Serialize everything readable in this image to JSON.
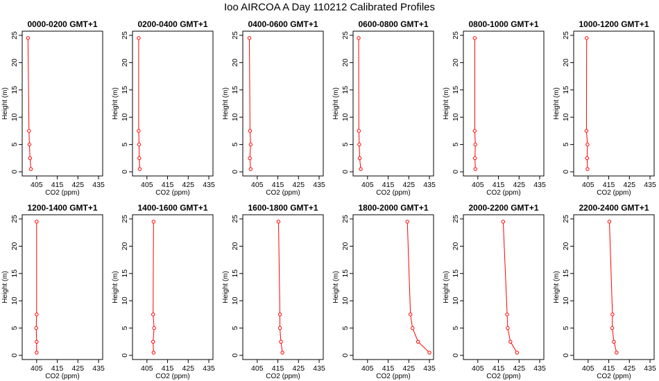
{
  "figure": {
    "title": "Ioo AIRCOA A  Day 110212  Calibrated Profiles",
    "line_color": "#ff0000",
    "axis_color": "#000000",
    "background": "#ffffff"
  },
  "chart_data": [
    {
      "type": "line",
      "title": "0000-0200 GMT+1",
      "xlabel": "CO2 (ppm)",
      "ylabel": "Height (m)",
      "xlim": [
        398,
        437
      ],
      "ylim": [
        0,
        25
      ],
      "x_ticks": [
        "405",
        "415",
        "425",
        "435"
      ],
      "y_ticks": [
        "0",
        "5",
        "10",
        "15",
        "20",
        "25"
      ],
      "grid": false,
      "markers": "open-circle",
      "series": [
        {
          "x": [
            402.2,
            401.8,
            401.5,
            401.3,
            400.8
          ],
          "y": [
            0.5,
            2.5,
            5,
            7.5,
            24.5
          ]
        }
      ]
    },
    {
      "type": "line",
      "title": "0200-0400 GMT+1",
      "xlabel": "CO2 (ppm)",
      "ylabel": "Height (m)",
      "xlim": [
        398,
        437
      ],
      "ylim": [
        0,
        25
      ],
      "x_ticks": [
        "405",
        "415",
        "425",
        "435"
      ],
      "y_ticks": [
        "0",
        "5",
        "10",
        "15",
        "20",
        "25"
      ],
      "grid": false,
      "markers": "open-circle",
      "series": [
        {
          "x": [
            401.5,
            401.3,
            401.2,
            401.0,
            401.0
          ],
          "y": [
            0.5,
            2.5,
            5,
            7.5,
            24.5
          ]
        }
      ]
    },
    {
      "type": "line",
      "title": "0400-0600 GMT+1",
      "xlabel": "CO2 (ppm)",
      "ylabel": "Height (m)",
      "xlim": [
        398,
        437
      ],
      "ylim": [
        0,
        25
      ],
      "x_ticks": [
        "405",
        "415",
        "425",
        "435"
      ],
      "y_ticks": [
        "0",
        "5",
        "10",
        "15",
        "20",
        "25"
      ],
      "grid": false,
      "markers": "open-circle",
      "series": [
        {
          "x": [
            401.8,
            401.4,
            401.8,
            401.5,
            401.2
          ],
          "y": [
            0.5,
            2.5,
            5,
            7.5,
            24.5
          ]
        }
      ]
    },
    {
      "type": "line",
      "title": "0600-0800 GMT+1",
      "xlabel": "CO2 (ppm)",
      "ylabel": "Height (m)",
      "xlim": [
        398,
        437
      ],
      "ylim": [
        0,
        25
      ],
      "x_ticks": [
        "405",
        "415",
        "425",
        "435"
      ],
      "y_ticks": [
        "0",
        "5",
        "10",
        "15",
        "20",
        "25"
      ],
      "grid": false,
      "markers": "open-circle",
      "series": [
        {
          "x": [
            401.7,
            401.2,
            401.0,
            400.8,
            400.7
          ],
          "y": [
            0.5,
            2.5,
            5,
            7.5,
            24.5
          ]
        }
      ]
    },
    {
      "type": "line",
      "title": "0800-1000 GMT+1",
      "xlabel": "CO2 (ppm)",
      "ylabel": "Height (m)",
      "xlim": [
        398,
        437
      ],
      "ylim": [
        0,
        25
      ],
      "x_ticks": [
        "405",
        "415",
        "425",
        "435"
      ],
      "y_ticks": [
        "0",
        "5",
        "10",
        "15",
        "20",
        "25"
      ],
      "grid": false,
      "markers": "open-circle",
      "series": [
        {
          "x": [
            403.8,
            403.6,
            403.8,
            403.5,
            403.5
          ],
          "y": [
            0.5,
            2.5,
            5,
            7.5,
            24.5
          ]
        }
      ]
    },
    {
      "type": "line",
      "title": "1000-1200 GMT+1",
      "xlabel": "CO2 (ppm)",
      "ylabel": "Height (m)",
      "xlim": [
        398,
        437
      ],
      "ylim": [
        0,
        25
      ],
      "x_ticks": [
        "405",
        "415",
        "425",
        "435"
      ],
      "y_ticks": [
        "0",
        "5",
        "10",
        "15",
        "20",
        "25"
      ],
      "grid": false,
      "markers": "open-circle",
      "series": [
        {
          "x": [
            404.7,
            404.5,
            404.7,
            404.2,
            404.3
          ],
          "y": [
            0.5,
            2.5,
            5,
            7.5,
            24.5
          ]
        }
      ]
    },
    {
      "type": "line",
      "title": "1200-1400 GMT+1",
      "xlabel": "CO2 (ppm)",
      "ylabel": "Height (m)",
      "xlim": [
        398,
        437
      ],
      "ylim": [
        0,
        25
      ],
      "x_ticks": [
        "405",
        "415",
        "425",
        "435"
      ],
      "y_ticks": [
        "0",
        "5",
        "10",
        "15",
        "20",
        "25"
      ],
      "grid": false,
      "markers": "open-circle",
      "series": [
        {
          "x": [
            405.0,
            405.0,
            404.8,
            405.0,
            405.0
          ],
          "y": [
            0.5,
            2.5,
            5,
            7.5,
            24.5
          ]
        }
      ]
    },
    {
      "type": "line",
      "title": "1400-1600 GMT+1",
      "xlabel": "CO2 (ppm)",
      "ylabel": "Height (m)",
      "xlim": [
        398,
        437
      ],
      "ylim": [
        0,
        25
      ],
      "x_ticks": [
        "405",
        "415",
        "425",
        "435"
      ],
      "y_ticks": [
        "0",
        "5",
        "10",
        "15",
        "20",
        "25"
      ],
      "grid": false,
      "markers": "open-circle",
      "series": [
        {
          "x": [
            408.2,
            408.0,
            408.5,
            408.0,
            408.2
          ],
          "y": [
            0.5,
            2.5,
            5,
            7.5,
            24.5
          ]
        }
      ]
    },
    {
      "type": "line",
      "title": "1600-1800 GMT+1",
      "xlabel": "CO2 (ppm)",
      "ylabel": "Height (m)",
      "xlim": [
        398,
        437
      ],
      "ylim": [
        0,
        25
      ],
      "x_ticks": [
        "405",
        "415",
        "425",
        "435"
      ],
      "y_ticks": [
        "0",
        "5",
        "10",
        "15",
        "20",
        "25"
      ],
      "grid": false,
      "markers": "open-circle",
      "series": [
        {
          "x": [
            417.2,
            416.5,
            416.0,
            416.0,
            415.3
          ],
          "y": [
            0.5,
            2.5,
            5,
            7.5,
            24.5
          ]
        }
      ]
    },
    {
      "type": "line",
      "title": "1800-2000 GMT+1",
      "xlabel": "CO2 (ppm)",
      "ylabel": "Height (m)",
      "xlim": [
        398,
        437
      ],
      "ylim": [
        0,
        25
      ],
      "x_ticks": [
        "405",
        "415",
        "425",
        "435"
      ],
      "y_ticks": [
        "0",
        "5",
        "10",
        "15",
        "20",
        "25"
      ],
      "grid": false,
      "markers": "open-circle",
      "series": [
        {
          "x": [
            435.0,
            429.5,
            426.8,
            425.8,
            424.3
          ],
          "y": [
            0.5,
            2.5,
            5,
            7.5,
            24.5
          ]
        }
      ]
    },
    {
      "type": "line",
      "title": "2000-2200 GMT+1",
      "xlabel": "CO2 (ppm)",
      "ylabel": "Height (m)",
      "xlim": [
        398,
        437
      ],
      "ylim": [
        0,
        25
      ],
      "x_ticks": [
        "405",
        "415",
        "425",
        "435"
      ],
      "y_ticks": [
        "0",
        "5",
        "10",
        "15",
        "20",
        "25"
      ],
      "grid": false,
      "markers": "open-circle",
      "series": [
        {
          "x": [
            424.0,
            420.8,
            419.5,
            419.2,
            417.3
          ],
          "y": [
            0.5,
            2.5,
            5,
            7.5,
            24.5
          ]
        }
      ]
    },
    {
      "type": "line",
      "title": "2200-2400 GMT+1",
      "xlabel": "CO2 (ppm)",
      "ylabel": "Height (m)",
      "xlim": [
        398,
        437
      ],
      "ylim": [
        0,
        25
      ],
      "x_ticks": [
        "405",
        "415",
        "425",
        "435"
      ],
      "y_ticks": [
        "0",
        "5",
        "10",
        "15",
        "20",
        "25"
      ],
      "grid": false,
      "markers": "open-circle",
      "series": [
        {
          "x": [
            418.8,
            417.5,
            416.7,
            416.8,
            415.3
          ],
          "y": [
            0.5,
            2.5,
            5,
            7.5,
            24.5
          ]
        }
      ]
    }
  ]
}
